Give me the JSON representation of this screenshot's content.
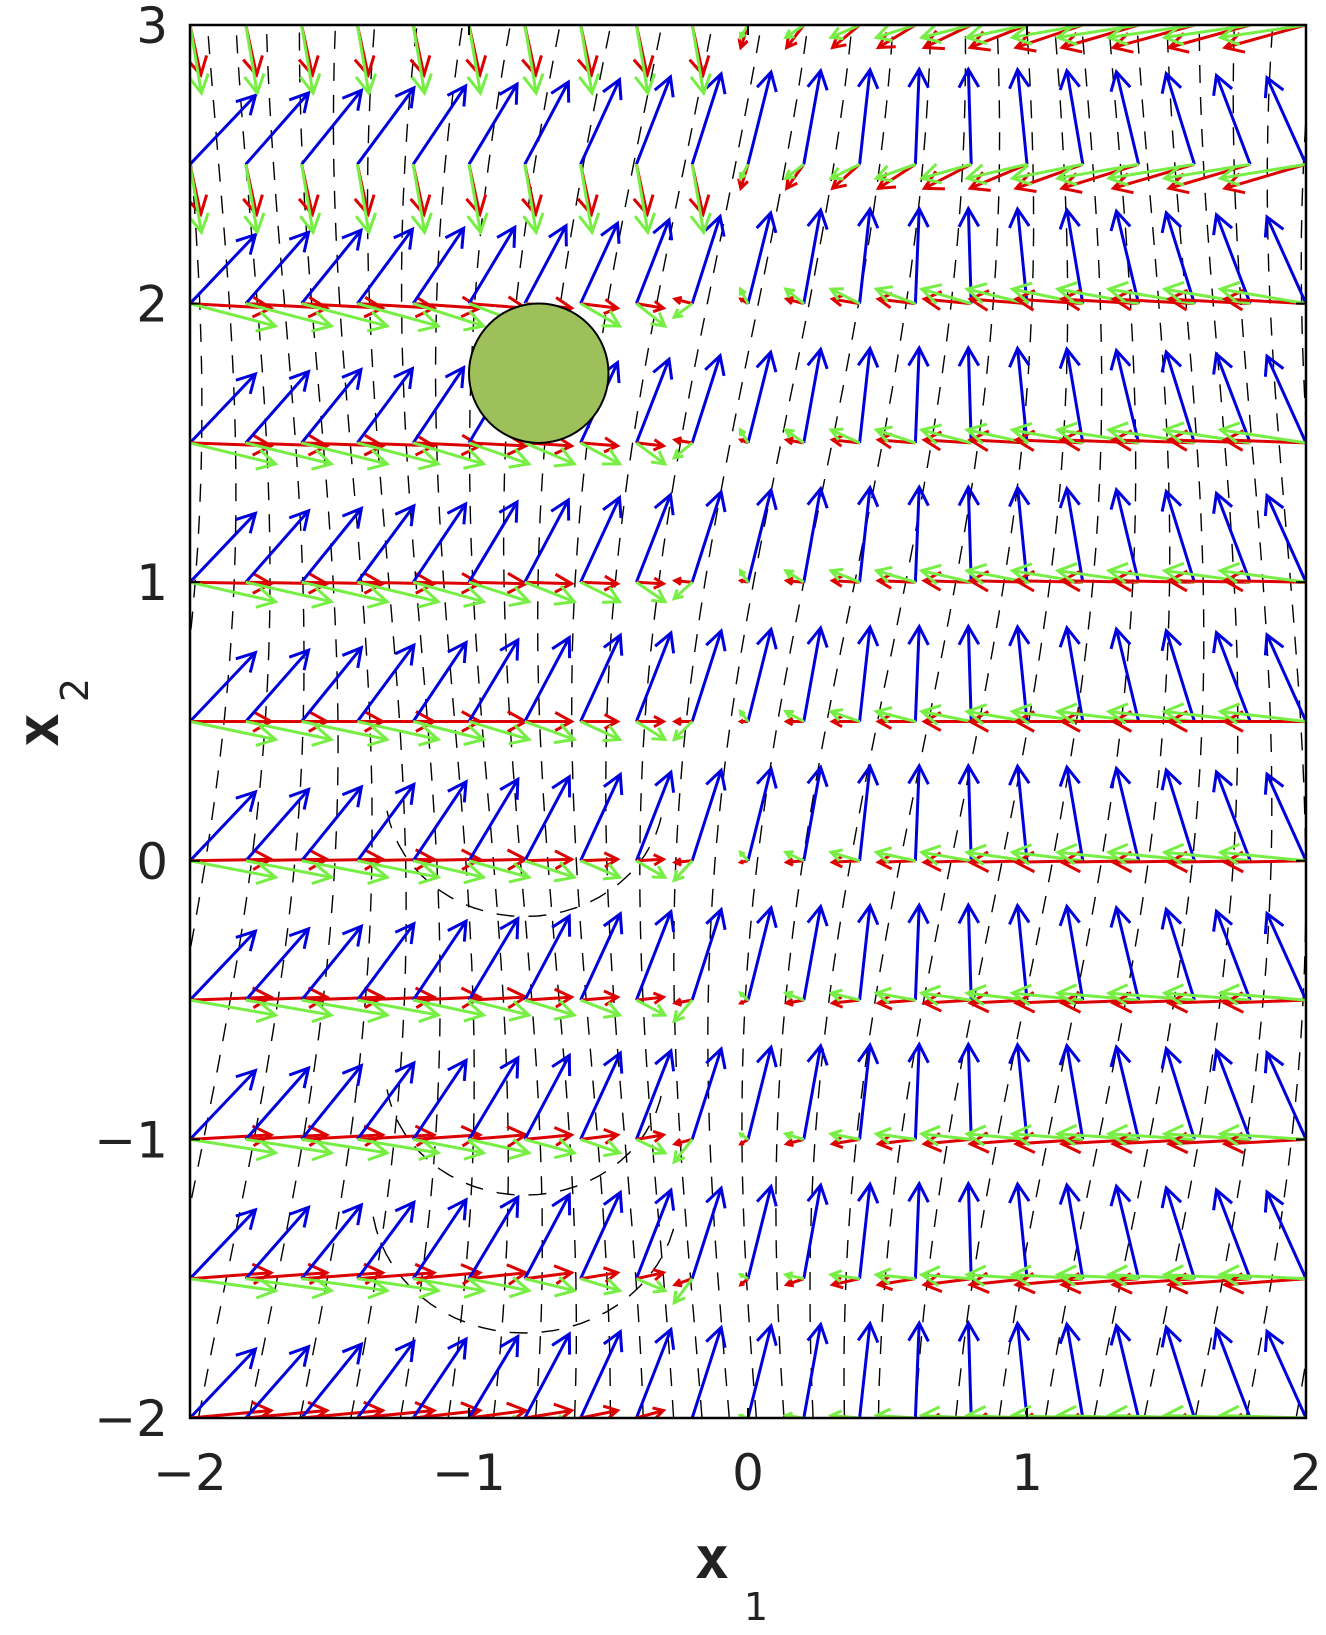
{
  "chart_data": {
    "type": "vector-field",
    "xlabel": "x",
    "xlabel_sub": "1",
    "ylabel": "x",
    "ylabel_sub": "2",
    "xlim": [
      -2,
      2
    ],
    "ylim": [
      -2,
      3
    ],
    "xticks": [
      {
        "value": -2,
        "label": "−2"
      },
      {
        "value": -1,
        "label": "−1"
      },
      {
        "value": 0,
        "label": "0"
      },
      {
        "value": 1,
        "label": "1"
      },
      {
        "value": 2,
        "label": "2"
      }
    ],
    "yticks": [
      {
        "value": -2,
        "label": "−2"
      },
      {
        "value": -1,
        "label": "−1"
      },
      {
        "value": 0,
        "label": "0"
      },
      {
        "value": 1,
        "label": "1"
      },
      {
        "value": 2,
        "label": "2"
      },
      {
        "value": 3,
        "label": "3"
      }
    ],
    "grid": false,
    "obstacle": {
      "center": [
        -0.75,
        1.75
      ],
      "radius": 0.25,
      "color": "#9dc05a"
    },
    "series": [
      {
        "color": "#0000dd",
        "x_count": 21,
        "y_count": 11
      },
      {
        "color": "#dd0000",
        "x_count": 21,
        "y_count": 11
      },
      {
        "color": "#77ee44",
        "x_count": 21,
        "y_count": 11
      }
    ],
    "level_sets": {
      "style": "dashed",
      "color": "#000000"
    }
  }
}
